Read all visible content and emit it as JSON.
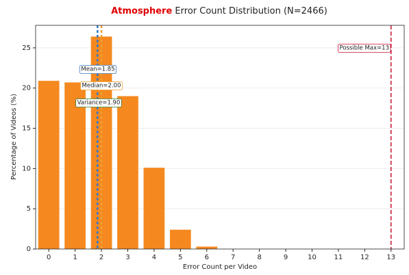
{
  "chart_data": {
    "type": "bar",
    "title": {
      "highlight": "Atmosphere",
      "rest": " Error Count Distribution (N=2466)"
    },
    "x_label": "Error Count per Video",
    "y_label": "Percentage of Videos (%)",
    "x": [
      0,
      1,
      2,
      3,
      4,
      5,
      6,
      7,
      8,
      9,
      10,
      11,
      12,
      13
    ],
    "values": [
      20.9,
      20.7,
      26.4,
      19.0,
      10.1,
      2.4,
      0.3,
      0,
      0,
      0,
      0,
      0,
      0,
      0
    ],
    "color": "#f5891f",
    "xlim": [
      -0.5,
      13.5
    ],
    "xticks": [
      0,
      1,
      2,
      3,
      4,
      5,
      6,
      7,
      8,
      9,
      10,
      11,
      12,
      13
    ],
    "ylim": [
      0,
      27.8
    ],
    "yticks": [
      0,
      5,
      10,
      15,
      20,
      25
    ],
    "grid": true,
    "lines": [
      {
        "x": 1.85,
        "color": "#3a78c0",
        "label": "Mean=1.85"
      },
      {
        "x": 2.0,
        "color": "#f0a030",
        "label": "Median=2.00"
      },
      {
        "x": 13,
        "color": "#c8102e",
        "label": "Possible Max=13"
      }
    ],
    "notes": [
      {
        "label": "Variance=1.90",
        "color": "#2e7d32"
      }
    ]
  }
}
